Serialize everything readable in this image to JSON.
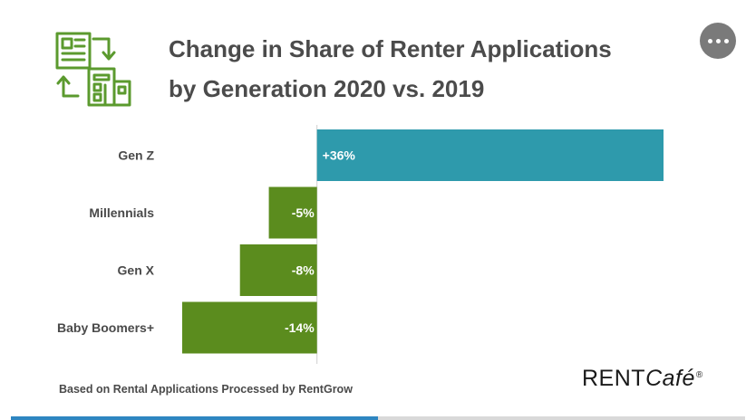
{
  "header": {
    "title_line1": "Change in Share of Renter Applications",
    "title_line2": "by Generation 2020 vs. 2019",
    "logo_icon": "document-building-swap-icon",
    "menu_icon": "more-dots-icon"
  },
  "chart_data": {
    "type": "bar",
    "orientation": "horizontal",
    "categories": [
      "Gen Z",
      "Millennials",
      "Gen X",
      "Baby Boomers+"
    ],
    "values": [
      36,
      -5,
      -8,
      -14
    ],
    "value_labels": [
      "+36%",
      "-5%",
      "-8%",
      "-14%"
    ],
    "title": "Change in Share of Renter Applications by Generation 2020 vs. 2019",
    "xlim": [
      -14,
      36
    ],
    "grid": false,
    "colors": {
      "positive": "#2e9aac",
      "negative": "#5b8c1e",
      "baseline": "#d0d0d0"
    }
  },
  "footer": {
    "note": "Based on Rental Applications Processed by RentGrow",
    "brand_part1": "RENT",
    "brand_part2": "Café",
    "brand_mark": "®"
  },
  "progress": {
    "fraction": 0.5
  },
  "colors": {
    "icon_green": "#5b9a2e",
    "accent_blue": "#2e86c1",
    "menu_gray": "#7a7a7a"
  }
}
